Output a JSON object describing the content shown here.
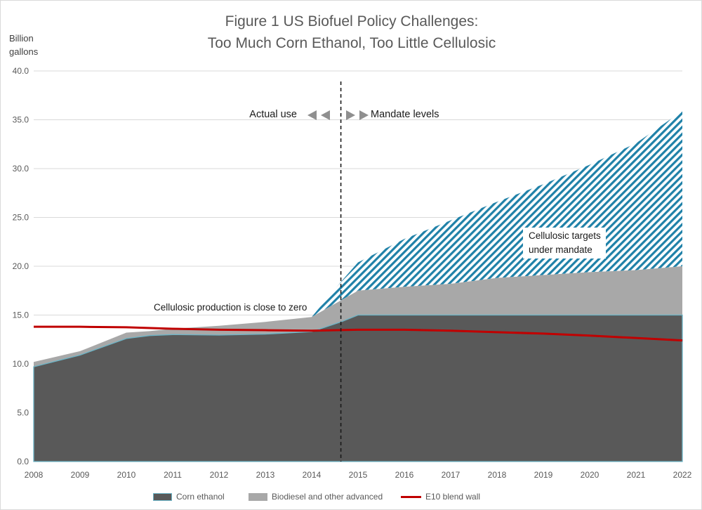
{
  "figure": {
    "title_line1": "Figure 1 US Biofuel Policy Challenges:",
    "title_line2": "Too Much Corn Ethanol, Too Little Cellulosic",
    "unit_line1": "Billion",
    "unit_line2": "gallons"
  },
  "annotations": {
    "actual_use": "Actual use",
    "mandate_levels": "Mandate levels",
    "cellulosic_zero": "Cellulosic production is close to zero",
    "targets_line1": "Cellulosic targets",
    "targets_line2": "under mandate"
  },
  "legend": {
    "items": [
      {
        "label": "Corn ethanol",
        "swatch": "area-dark"
      },
      {
        "label": "Biodiesel and other advanced",
        "swatch": "area-light"
      },
      {
        "label": "E10 blend wall",
        "swatch": "red-line"
      }
    ]
  },
  "chart_data": {
    "type": "area",
    "title": "Figure 1 US Biofuel Policy Challenges: Too Much Corn Ethanol, Too Little Cellulosic",
    "ylabel": "Billion gallons",
    "ylim": [
      0,
      40
    ],
    "ytick_step": 5,
    "ytick_labels": [
      "0.0",
      "5.0",
      "10.0",
      "15.0",
      "20.0",
      "25.0",
      "30.0",
      "35.0",
      "40.0"
    ],
    "x_years": [
      2008,
      2009,
      2010,
      2011,
      2012,
      2013,
      2014,
      2015,
      2016,
      2017,
      2018,
      2019,
      2020,
      2021,
      2022
    ],
    "divider_year": 2014.63,
    "grid": "horizontal",
    "legend_position": "bottom",
    "stacking_note": "series y-values are cumulative stack tops in billion gallons",
    "series": [
      {
        "name": "Corn ethanol",
        "style": "area",
        "x": [
          2008,
          2009,
          2010,
          2010.5,
          2011,
          2012,
          2013,
          2014,
          2014.63,
          2015,
          2016,
          2017,
          2018,
          2019,
          2020,
          2021,
          2022
        ],
        "y": [
          9.7,
          10.9,
          12.6,
          12.9,
          13.0,
          12.95,
          13.05,
          13.3,
          14.3,
          15.0,
          15.0,
          15.0,
          15.0,
          15.0,
          15.0,
          15.0,
          15.0
        ]
      },
      {
        "name": "Biodiesel and other advanced (cumulative top)",
        "style": "area",
        "x": [
          2008,
          2009,
          2010,
          2010.5,
          2011,
          2012,
          2013,
          2014,
          2014.63,
          2015,
          2016,
          2017,
          2018,
          2019,
          2020,
          2021,
          2022
        ],
        "y": [
          10.2,
          11.3,
          13.2,
          13.35,
          13.6,
          13.9,
          14.3,
          14.8,
          16.5,
          17.5,
          17.9,
          18.2,
          18.8,
          19.1,
          19.4,
          19.6,
          20.0
        ]
      },
      {
        "name": "Cellulosic targets under mandate (cumulative top)",
        "style": "hatched-area",
        "x": [
          2014,
          2014.63,
          2015,
          2016,
          2017,
          2018,
          2019,
          2020,
          2021,
          2022
        ],
        "y": [
          14.8,
          18.4,
          20.4,
          22.8,
          24.7,
          26.6,
          28.4,
          30.4,
          32.6,
          35.9
        ]
      },
      {
        "name": "E10 blend wall",
        "style": "line",
        "x": [
          2008,
          2009,
          2010,
          2011,
          2012,
          2013,
          2014,
          2015,
          2016,
          2017,
          2018,
          2019,
          2020,
          2021,
          2022
        ],
        "y": [
          13.8,
          13.8,
          13.75,
          13.6,
          13.5,
          13.45,
          13.4,
          13.5,
          13.5,
          13.4,
          13.25,
          13.1,
          12.9,
          12.65,
          12.4
        ]
      }
    ],
    "colors": {
      "corn_fill": "#595959",
      "corn_edge": "#6cb4c6",
      "biodiesel_fill": "#a8a8a8",
      "hatch_stroke": "#1f81a8",
      "hatch_bg": "#ffffff",
      "blend_wall": "#c00000",
      "gridline": "#d9d9d9",
      "axis_text": "#595959",
      "divider": "#1a1a1a",
      "arrow": "#8f8f8f"
    }
  }
}
